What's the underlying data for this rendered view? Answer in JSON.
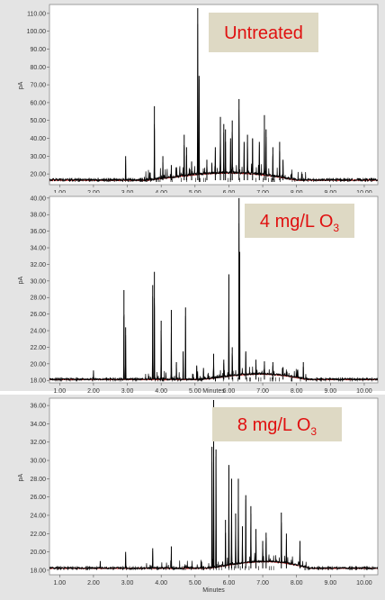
{
  "colors": {
    "page_bg": "#ffffff",
    "panel_bg": "#e4e4e4",
    "plot_bg": "#ffffff",
    "trace": "#000000",
    "baseline": "#e02020",
    "label_box": "#ded9c4",
    "label_text": "#e01010",
    "axis_text": "#333333"
  },
  "chart_data": [
    {
      "type": "line",
      "label": "Untreated",
      "label_sub": "",
      "ylabel": "pA",
      "xlabel": "",
      "xlim": [
        0.7,
        10.4
      ],
      "ylim": [
        14,
        115
      ],
      "xticks": [
        "1.00",
        "2.00",
        "3.00",
        "4.00",
        "5.00",
        "6.00",
        "7.00",
        "8.00",
        "9.00",
        "10.00"
      ],
      "yticks": [
        "20.00",
        "30.00",
        "40.00",
        "50.00",
        "60.00",
        "70.00",
        "80.00",
        "90.00",
        "100.00",
        "110.00"
      ],
      "baseline": 16.5,
      "noise": 1.4,
      "hump": {
        "start": 3.6,
        "end": 8.0,
        "height": 5
      },
      "peaks": [
        [
          2.95,
          30
        ],
        [
          3.8,
          58
        ],
        [
          4.05,
          30
        ],
        [
          4.3,
          25
        ],
        [
          4.68,
          42
        ],
        [
          4.75,
          35
        ],
        [
          4.9,
          27
        ],
        [
          5.08,
          113
        ],
        [
          5.12,
          75
        ],
        [
          5.35,
          28
        ],
        [
          5.6,
          35
        ],
        [
          5.75,
          52
        ],
        [
          5.85,
          48
        ],
        [
          5.9,
          45
        ],
        [
          6.05,
          40
        ],
        [
          6.1,
          50
        ],
        [
          6.3,
          62
        ],
        [
          6.45,
          38
        ],
        [
          6.55,
          42
        ],
        [
          6.7,
          40
        ],
        [
          6.9,
          38
        ],
        [
          7.05,
          53
        ],
        [
          7.1,
          45
        ],
        [
          7.3,
          35
        ],
        [
          7.5,
          38
        ],
        [
          7.6,
          28
        ]
      ]
    },
    {
      "type": "line",
      "label": "4 mg/L O",
      "label_sub": "3",
      "ylabel": "pA",
      "xlabel": "Minutes",
      "xlim": [
        0.7,
        10.4
      ],
      "ylim": [
        17.7,
        40.2
      ],
      "xticks": [
        "1.00",
        "2.00",
        "3.00",
        "4.00",
        "5.00",
        "6.00",
        "7.00",
        "8.00",
        "9.00",
        "10.00"
      ],
      "yticks": [
        "18.00",
        "20.00",
        "22.00",
        "24.00",
        "26.00",
        "28.00",
        "30.00",
        "32.00",
        "34.00",
        "36.00",
        "38.00",
        "40.00"
      ],
      "baseline": 18.1,
      "noise": 0.25,
      "hump": {
        "start": 5.2,
        "end": 8.3,
        "height": 0.8
      },
      "peaks": [
        [
          2.0,
          19.2
        ],
        [
          2.9,
          28.9
        ],
        [
          2.95,
          24.4
        ],
        [
          3.75,
          29.5
        ],
        [
          3.8,
          31.1
        ],
        [
          4.0,
          25.2
        ],
        [
          4.3,
          26.5
        ],
        [
          4.45,
          20.2
        ],
        [
          4.65,
          21.5
        ],
        [
          4.72,
          26.8
        ],
        [
          5.05,
          19.8
        ],
        [
          5.25,
          19.5
        ],
        [
          5.55,
          21.2
        ],
        [
          5.85,
          20.5
        ],
        [
          6.0,
          30.8
        ],
        [
          6.1,
          22
        ],
        [
          6.3,
          40
        ],
        [
          6.32,
          33.5
        ],
        [
          6.5,
          21.5
        ],
        [
          6.8,
          20.5
        ],
        [
          7.05,
          20.3
        ],
        [
          7.3,
          20.2
        ],
        [
          7.6,
          19.6
        ],
        [
          8.2,
          20.2
        ]
      ]
    },
    {
      "type": "line",
      "label": "8 mg/L O",
      "label_sub": "3",
      "ylabel": "pA",
      "xlabel": "Minutes",
      "xlim": [
        0.7,
        10.4
      ],
      "ylim": [
        17.5,
        36.8
      ],
      "xticks": [
        "1.00",
        "2.00",
        "3.00",
        "4.00",
        "5.00",
        "6.00",
        "7.00",
        "8.00",
        "9.00",
        "10.00"
      ],
      "yticks": [
        "18.00",
        "20.00",
        "22.00",
        "24.00",
        "26.00",
        "28.00",
        "30.00",
        "32.00",
        "34.00",
        "36.00"
      ],
      "baseline": 18.2,
      "noise": 0.22,
      "hump": {
        "start": 5.4,
        "end": 8.4,
        "height": 0.9
      },
      "peaks": [
        [
          2.2,
          19
        ],
        [
          2.95,
          20
        ],
        [
          3.75,
          20.4
        ],
        [
          4.3,
          20.6
        ],
        [
          5.5,
          31.5
        ],
        [
          5.55,
          36.6
        ],
        [
          5.62,
          31.2
        ],
        [
          5.9,
          23.5
        ],
        [
          6.0,
          29.5
        ],
        [
          6.08,
          28
        ],
        [
          6.2,
          24.2
        ],
        [
          6.28,
          28
        ],
        [
          6.4,
          22.8
        ],
        [
          6.5,
          26.2
        ],
        [
          6.65,
          25
        ],
        [
          6.8,
          22.5
        ],
        [
          7.0,
          21.2
        ],
        [
          7.1,
          22.1
        ],
        [
          7.55,
          24.3
        ],
        [
          7.7,
          22
        ],
        [
          8.1,
          21.2
        ]
      ]
    }
  ]
}
